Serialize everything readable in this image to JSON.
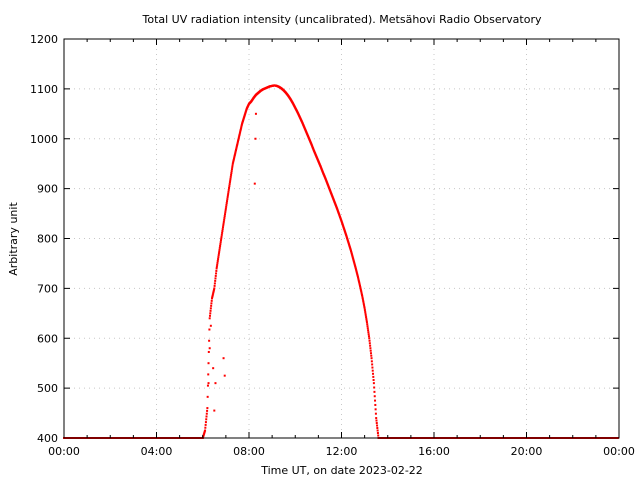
{
  "chart_data": {
    "type": "scatter",
    "title": "Total UV radiation intensity (uncalibrated). Metsähovi Radio Observatory",
    "xlabel": "Time UT, on date 2023-02-22",
    "ylabel": "Arbitrary unit",
    "xlim": [
      0,
      24
    ],
    "ylim": [
      400,
      1200
    ],
    "xticks": [
      0,
      4,
      8,
      12,
      16,
      20,
      24
    ],
    "xtick_labels": [
      "00:00",
      "04:00",
      "08:00",
      "12:00",
      "16:00",
      "20:00",
      "00:00"
    ],
    "yticks": [
      400,
      500,
      600,
      700,
      800,
      900,
      1000,
      1100,
      1200
    ],
    "ytick_labels": [
      "400",
      "500",
      "600",
      "700",
      "800",
      "900",
      "1000",
      "1100",
      "1200"
    ],
    "grid": true,
    "marker_color": "#ff0000",
    "baseline": 400,
    "x_unit": "hours UT",
    "series": [
      {
        "x": [
          6.0,
          6.1,
          6.2,
          6.3,
          6.4,
          6.5,
          6.6,
          6.7,
          6.8,
          6.9,
          7.0,
          7.1,
          7.2,
          7.3,
          7.4,
          7.5,
          7.6,
          7.7,
          7.8,
          7.9,
          8.0,
          8.1,
          8.2,
          8.3,
          8.4,
          8.5,
          8.6,
          8.7,
          8.8,
          8.9,
          9.0,
          9.1,
          9.2,
          9.3,
          9.4,
          9.5,
          9.6,
          9.7,
          9.8,
          9.9,
          10.0,
          10.1,
          10.2,
          10.3,
          10.4,
          10.5,
          10.6,
          10.7,
          10.8,
          10.9,
          11.0,
          11.1,
          11.2,
          11.3,
          11.4,
          11.5,
          11.6,
          11.7,
          11.8,
          11.9,
          12.0,
          12.1,
          12.2,
          12.3,
          12.4,
          12.5,
          12.6,
          12.7,
          12.8,
          12.9,
          13.0,
          13.1,
          13.2,
          13.3,
          13.4,
          13.5,
          13.6,
          13.7,
          13.8,
          13.9,
          14.0,
          14.1,
          14.2,
          14.3,
          14.4,
          14.5,
          14.6,
          14.7,
          14.8,
          14.9,
          15.0,
          15.1
        ],
        "y": [
          400,
          415,
          460,
          640,
          680,
          700,
          740,
          770,
          800,
          830,
          860,
          890,
          920,
          950,
          970,
          990,
          1010,
          1030,
          1045,
          1060,
          1070,
          1075,
          1082,
          1088,
          1092,
          1096,
          1099,
          1101,
          1103,
          1105,
          1106,
          1107,
          1106,
          1104,
          1101,
          1097,
          1092,
          1086,
          1079,
          1071,
          1062,
          1053,
          1043,
          1033,
          1022,
          1011,
          1000,
          989,
          977,
          966,
          955,
          944,
          932,
          921,
          909,
          897,
          885,
          873,
          861,
          848,
          835,
          821,
          807,
          792,
          777,
          760,
          743,
          725,
          705,
          684,
          660,
          632,
          600,
          560,
          510,
          440,
          400,
          400,
          400,
          400,
          400,
          400,
          400,
          400,
          400,
          400,
          400,
          400,
          400,
          400,
          400,
          400
        ]
      },
      {
        "x": [
          6.25,
          6.3,
          6.35,
          6.45,
          6.5,
          6.55,
          6.9,
          6.95,
          8.25,
          8.28,
          8.3
        ],
        "y": [
          510,
          580,
          625,
          540,
          455,
          510,
          560,
          525,
          910,
          1000,
          1050
        ]
      }
    ]
  }
}
